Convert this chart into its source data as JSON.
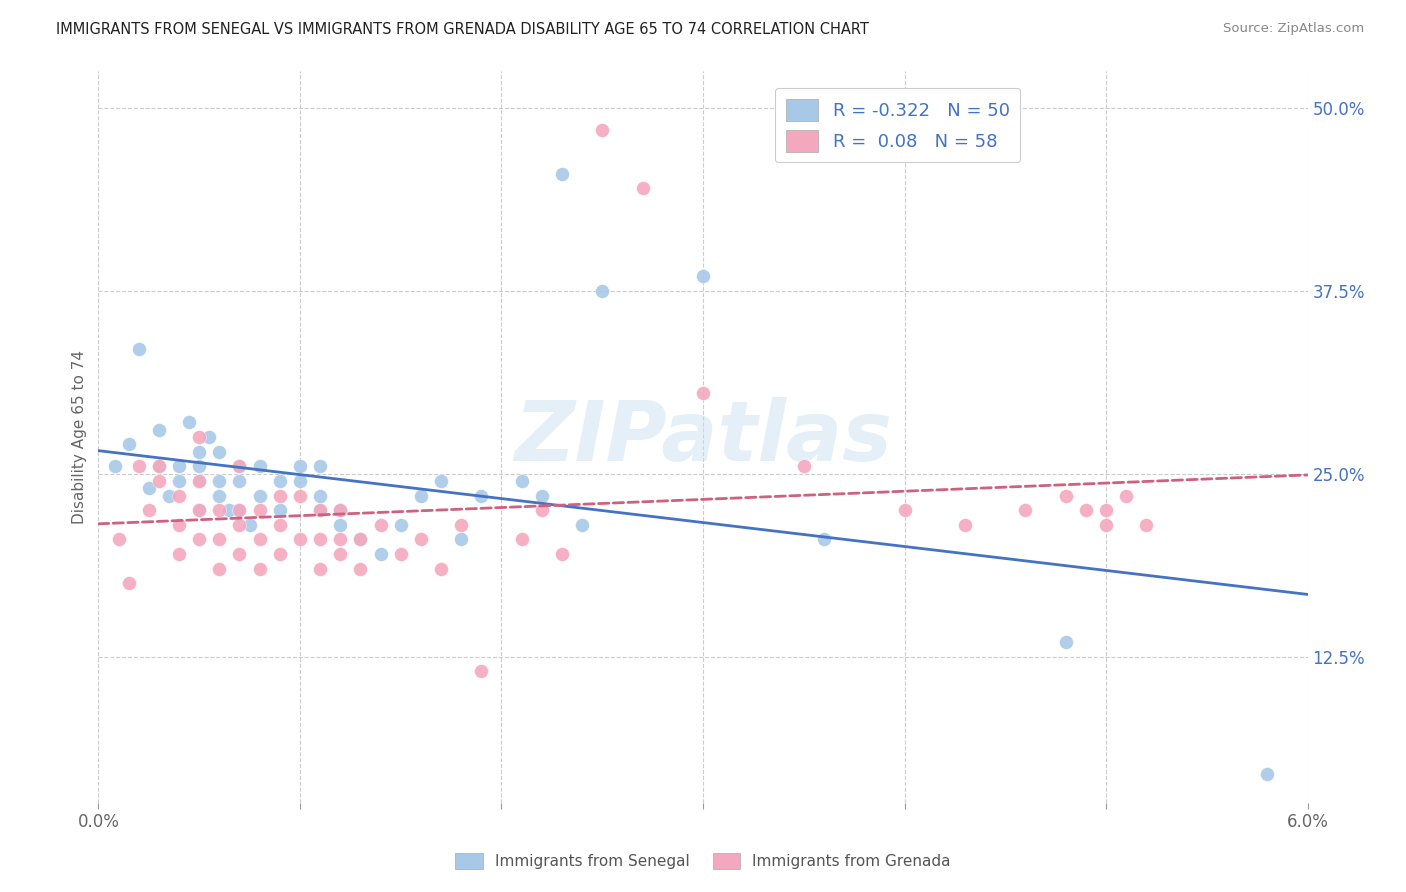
{
  "title": "IMMIGRANTS FROM SENEGAL VS IMMIGRANTS FROM GRENADA DISABILITY AGE 65 TO 74 CORRELATION CHART",
  "source": "Source: ZipAtlas.com",
  "ylabel": "Disability Age 65 to 74",
  "xlim": [
    0.0,
    0.06
  ],
  "ylim": [
    0.025,
    0.525
  ],
  "xticks": [
    0.0,
    0.01,
    0.02,
    0.03,
    0.04,
    0.05,
    0.06
  ],
  "xticklabels": [
    "0.0%",
    "",
    "",
    "",
    "",
    "",
    "6.0%"
  ],
  "yticks": [
    0.125,
    0.25,
    0.375,
    0.5
  ],
  "yticklabels": [
    "12.5%",
    "25.0%",
    "37.5%",
    "50.0%"
  ],
  "senegal_R": -0.322,
  "senegal_N": 50,
  "grenada_R": 0.08,
  "grenada_N": 58,
  "senegal_color": "#a8c8e8",
  "grenada_color": "#f4a8be",
  "trend_senegal_color": "#4472c4",
  "trend_grenada_color": "#d06080",
  "legend_label_senegal": "Immigrants from Senegal",
  "legend_label_grenada": "Immigrants from Grenada",
  "watermark": "ZIPatlas",
  "senegal_x": [
    0.0008,
    0.0015,
    0.002,
    0.0025,
    0.003,
    0.003,
    0.0035,
    0.004,
    0.004,
    0.0045,
    0.005,
    0.005,
    0.005,
    0.005,
    0.0055,
    0.006,
    0.006,
    0.006,
    0.0065,
    0.007,
    0.007,
    0.007,
    0.0075,
    0.008,
    0.008,
    0.009,
    0.009,
    0.01,
    0.01,
    0.011,
    0.011,
    0.011,
    0.012,
    0.012,
    0.013,
    0.014,
    0.015,
    0.016,
    0.017,
    0.018,
    0.019,
    0.021,
    0.022,
    0.023,
    0.024,
    0.025,
    0.03,
    0.036,
    0.048,
    0.058
  ],
  "senegal_y": [
    0.255,
    0.27,
    0.335,
    0.24,
    0.255,
    0.28,
    0.235,
    0.245,
    0.255,
    0.285,
    0.225,
    0.245,
    0.255,
    0.265,
    0.275,
    0.235,
    0.245,
    0.265,
    0.225,
    0.225,
    0.245,
    0.255,
    0.215,
    0.235,
    0.255,
    0.225,
    0.245,
    0.245,
    0.255,
    0.225,
    0.235,
    0.255,
    0.215,
    0.225,
    0.205,
    0.195,
    0.215,
    0.235,
    0.245,
    0.205,
    0.235,
    0.245,
    0.235,
    0.455,
    0.215,
    0.375,
    0.385,
    0.205,
    0.135,
    0.045
  ],
  "grenada_x": [
    0.001,
    0.0015,
    0.002,
    0.0025,
    0.003,
    0.003,
    0.004,
    0.004,
    0.004,
    0.005,
    0.005,
    0.005,
    0.005,
    0.006,
    0.006,
    0.006,
    0.007,
    0.007,
    0.007,
    0.007,
    0.008,
    0.008,
    0.008,
    0.009,
    0.009,
    0.009,
    0.01,
    0.01,
    0.011,
    0.011,
    0.011,
    0.012,
    0.012,
    0.012,
    0.013,
    0.013,
    0.014,
    0.015,
    0.016,
    0.017,
    0.018,
    0.019,
    0.021,
    0.022,
    0.023,
    0.025,
    0.027,
    0.03,
    0.035,
    0.04,
    0.043,
    0.046,
    0.048,
    0.049,
    0.05,
    0.05,
    0.051,
    0.052
  ],
  "grenada_y": [
    0.205,
    0.175,
    0.255,
    0.225,
    0.245,
    0.255,
    0.195,
    0.215,
    0.235,
    0.205,
    0.225,
    0.245,
    0.275,
    0.185,
    0.205,
    0.225,
    0.195,
    0.215,
    0.225,
    0.255,
    0.185,
    0.205,
    0.225,
    0.195,
    0.215,
    0.235,
    0.205,
    0.235,
    0.185,
    0.205,
    0.225,
    0.195,
    0.205,
    0.225,
    0.185,
    0.205,
    0.215,
    0.195,
    0.205,
    0.185,
    0.215,
    0.115,
    0.205,
    0.225,
    0.195,
    0.485,
    0.445,
    0.305,
    0.255,
    0.225,
    0.215,
    0.225,
    0.235,
    0.225,
    0.215,
    0.225,
    0.235,
    0.215
  ]
}
